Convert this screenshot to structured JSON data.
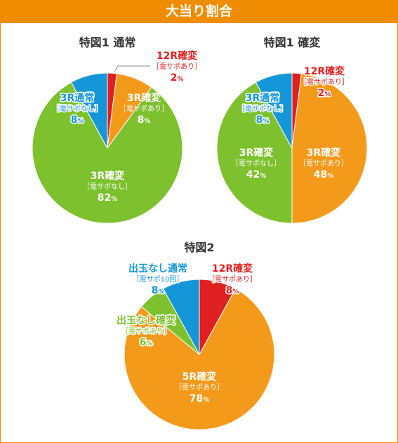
{
  "header": {
    "title": "大当り割合"
  },
  "colors": {
    "header_bg": "#f08c00",
    "red": "#e02020",
    "orange": "#f49a1a",
    "green": "#7dc12e",
    "blue": "#1596d8",
    "white": "#ffffff"
  },
  "chart_data": [
    {
      "type": "pie",
      "title": "特図1 通常",
      "slices": [
        {
          "label": "12R確変",
          "sub": "［電サポあり］",
          "value": 2,
          "pct": "2",
          "color": "red",
          "label_style": "outline"
        },
        {
          "label": "3R確変",
          "sub": "［電サポあり］",
          "value": 8,
          "pct": "8",
          "color": "orange",
          "label_style": "white"
        },
        {
          "label": "3R確変",
          "sub": "［電サポなし］",
          "value": 82,
          "pct": "82",
          "color": "green",
          "label_style": "white"
        },
        {
          "label": "3R通常",
          "sub": "［電サポなし］",
          "value": 8,
          "pct": "8",
          "color": "blue",
          "label_style": "outline"
        }
      ]
    },
    {
      "type": "pie",
      "title": "特図1 確変",
      "slices": [
        {
          "label": "12R確変",
          "sub": "［電サポあり］",
          "value": 2,
          "pct": "2",
          "color": "red",
          "label_style": "outline"
        },
        {
          "label": "3R確変",
          "sub": "［電サポあり］",
          "value": 48,
          "pct": "48",
          "color": "orange",
          "label_style": "white"
        },
        {
          "label": "3R確変",
          "sub": "［電サポなし］",
          "value": 42,
          "pct": "42",
          "color": "green",
          "label_style": "white"
        },
        {
          "label": "3R通常",
          "sub": "［電サポなし］",
          "value": 8,
          "pct": "8",
          "color": "blue",
          "label_style": "outline"
        }
      ]
    },
    {
      "type": "pie",
      "title": "特図2",
      "slices": [
        {
          "label": "12R確変",
          "sub": "［電サポあり］",
          "value": 8,
          "pct": "8",
          "color": "red",
          "label_style": "outline"
        },
        {
          "label": "5R確変",
          "sub": "［電サポあり］",
          "value": 78,
          "pct": "78",
          "color": "orange",
          "label_style": "white"
        },
        {
          "label": "出玉なし確変",
          "sub": "［電サポあり］",
          "value": 6,
          "pct": "6",
          "color": "green",
          "label_style": "outline"
        },
        {
          "label": "出玉なし通常",
          "sub": "［電サポ10回］",
          "value": 8,
          "pct": "8",
          "color": "blue",
          "label_style": "outline"
        }
      ]
    }
  ]
}
